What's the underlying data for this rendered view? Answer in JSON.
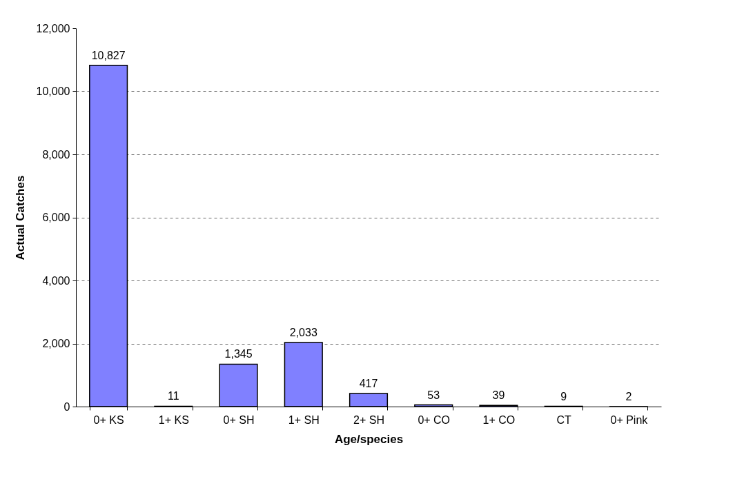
{
  "chart_data": {
    "type": "bar",
    "xlabel": "Age/species",
    "ylabel": "Actual Catches",
    "categories": [
      "0+ KS",
      "1+ KS",
      "0+ SH",
      "1+ SH",
      "2+ SH",
      "0+ CO",
      "1+ CO",
      "CT",
      "0+ Pink"
    ],
    "values": [
      10827,
      11,
      1345,
      2033,
      417,
      53,
      39,
      9,
      2
    ],
    "value_labels": [
      "10,827",
      "11",
      "1,345",
      "2,033",
      "417",
      "53",
      "39",
      "9",
      "2"
    ],
    "color": "#8080ff",
    "ylim": [
      0,
      12000
    ],
    "yticks": [
      0,
      {
        "value": 2000,
        "label": "2,000"
      },
      {
        "value": 4000,
        "label": "4,000"
      },
      {
        "value": 6000,
        "label": "6,000"
      },
      {
        "value": 8000,
        "label": "8,000"
      },
      {
        "value": 10000,
        "label": "10,000"
      },
      {
        "value": 12000,
        "label": "12,000"
      }
    ],
    "grid": "y"
  }
}
